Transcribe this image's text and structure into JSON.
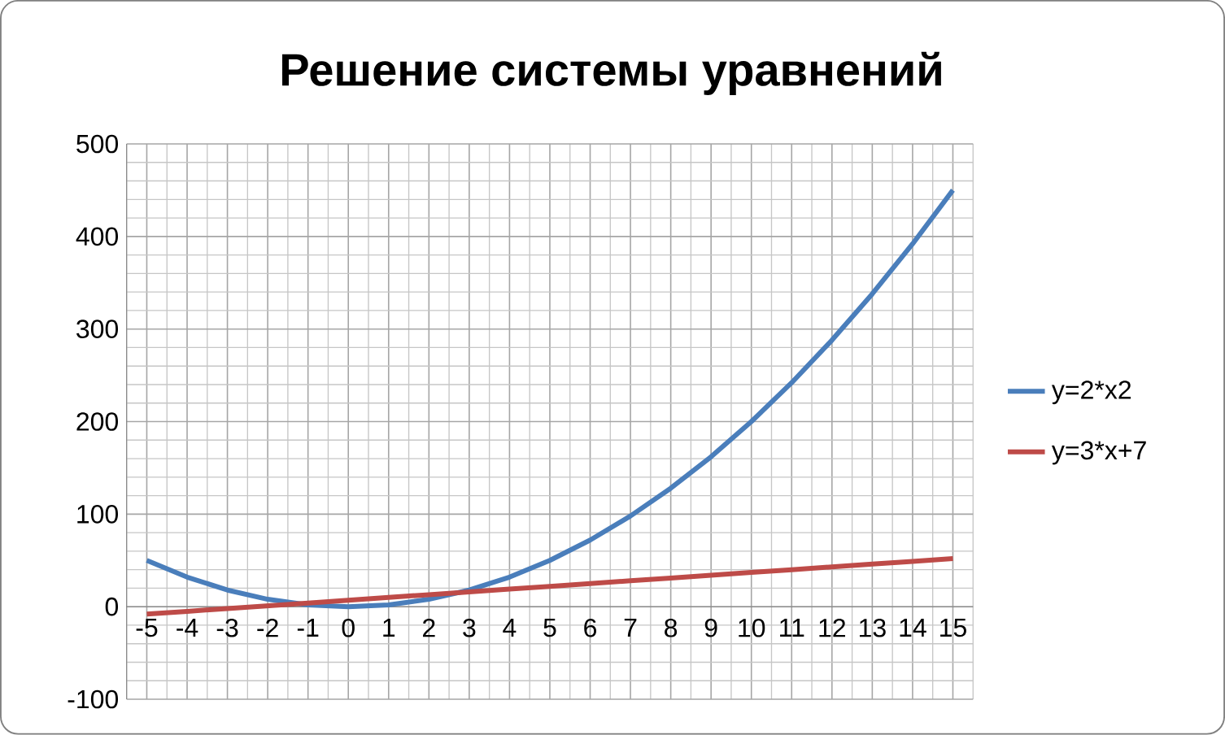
{
  "chart_data": {
    "type": "line",
    "title": "Решение системы уравнений",
    "categories": [
      "-5",
      "-4",
      "-3",
      "-2",
      "-1",
      "0",
      "1",
      "2",
      "3",
      "4",
      "5",
      "6",
      "7",
      "8",
      "9",
      "10",
      "11",
      "12",
      "13",
      "14",
      "15"
    ],
    "series": [
      {
        "name": "y=2*x2",
        "color": "#4a7ebb",
        "values": [
          50,
          32,
          18,
          8,
          2,
          0,
          2,
          8,
          18,
          32,
          50,
          72,
          98,
          128,
          162,
          200,
          242,
          288,
          338,
          392,
          450
        ]
      },
      {
        "name": "y=3*x+7",
        "color": "#be4b48",
        "values": [
          -8,
          -5,
          -2,
          1,
          4,
          7,
          10,
          13,
          16,
          19,
          22,
          25,
          28,
          31,
          34,
          37,
          40,
          43,
          46,
          49,
          52
        ]
      }
    ],
    "ylim": [
      -100,
      500
    ],
    "yticks": [
      -100,
      0,
      100,
      200,
      300,
      400,
      500
    ],
    "grid": true,
    "legend": "right"
  }
}
